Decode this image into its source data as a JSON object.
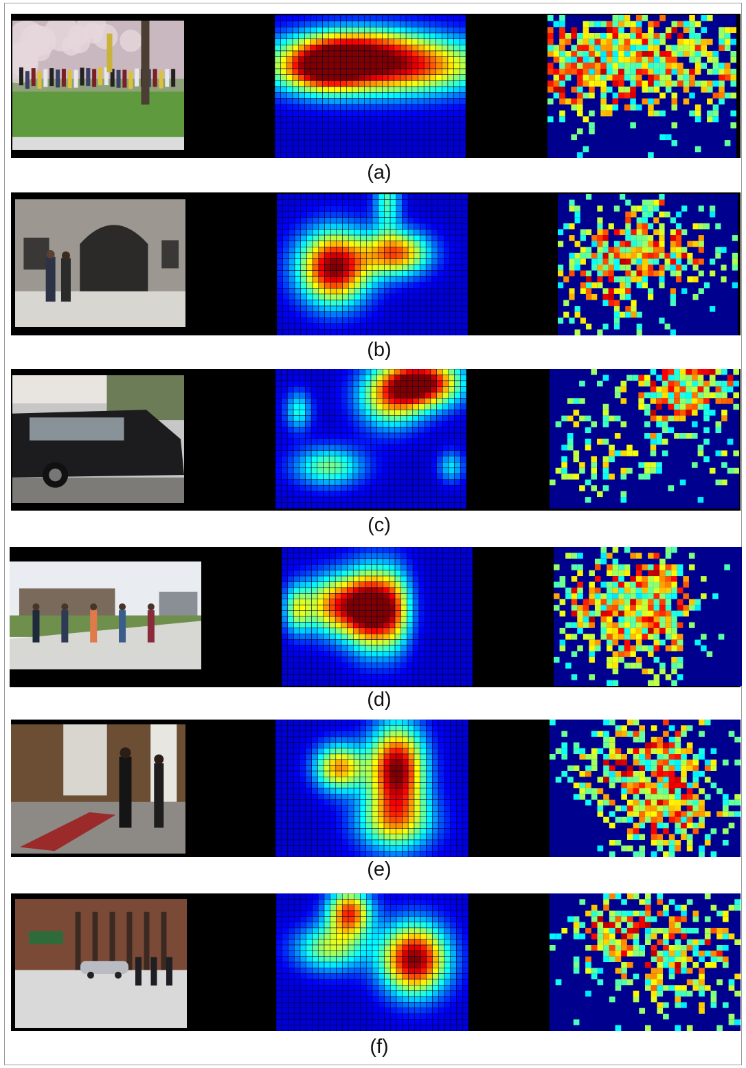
{
  "panels": [
    {
      "caption": "(a)",
      "scene": "crowd of people gathered on a campus lawn under a blossoming tree"
    },
    {
      "caption": "(b)",
      "scene": "two pedestrians walking out of a stone archway"
    },
    {
      "caption": "(c)",
      "scene": "black minivan driving past on a street"
    },
    {
      "caption": "(d)",
      "scene": "group of people jogging along a campus sidewalk"
    },
    {
      "caption": "(e)",
      "scene": "people standing and talking inside a building lobby"
    },
    {
      "caption": "(f)",
      "scene": "pedestrians crossing a street intersection with a parked car"
    }
  ],
  "colors": {
    "background": "#ffffff",
    "strip": "#000000",
    "heat_low": "#00008f",
    "heat_high": "#8b0000"
  }
}
